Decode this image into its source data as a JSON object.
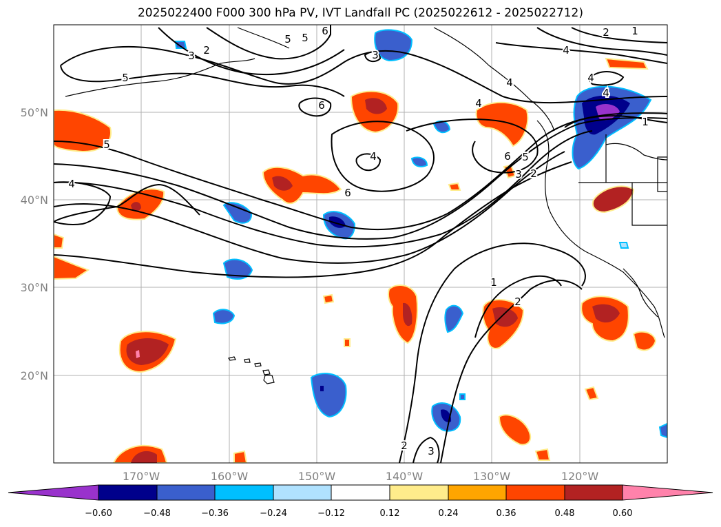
{
  "title": "2025022400 F000 300 hPa PV, IVT Landfall PC (2025022612 - 2025022712)",
  "map": {
    "lat_labels": [
      "50°N",
      "40°N",
      "30°N",
      "20°N"
    ],
    "lon_labels": [
      "170°W",
      "160°W",
      "150°W",
      "140°W",
      "130°W",
      "120°W"
    ],
    "contour_labels": [
      "5",
      "6",
      "3",
      "2",
      "5",
      "4",
      "6",
      "4",
      "4",
      "3",
      "5",
      "4",
      "6",
      "4",
      "4",
      "5",
      "6",
      "5",
      "3",
      "2",
      "1",
      "1",
      "2",
      "2",
      "3",
      "2",
      "4",
      "1"
    ]
  },
  "colorbar": {
    "ticks": [
      "−0.60",
      "−0.48",
      "−0.36",
      "−0.24",
      "−0.12",
      "0.12",
      "0.24",
      "0.36",
      "0.48",
      "0.60"
    ],
    "colors": {
      "lt_m060": "#9932cc",
      "m060_m048": "#00008b",
      "m048_m036": "#3a5fcd",
      "m036_m024": "#00bfff",
      "m024_m012": "#b0e2ff",
      "m012_012": "#ffffff",
      "012_024": "#ffec8b",
      "024_036": "#ffa500",
      "036_048": "#ff4500",
      "048_060": "#b22222",
      "gt_060": "#ff82ab"
    }
  }
}
